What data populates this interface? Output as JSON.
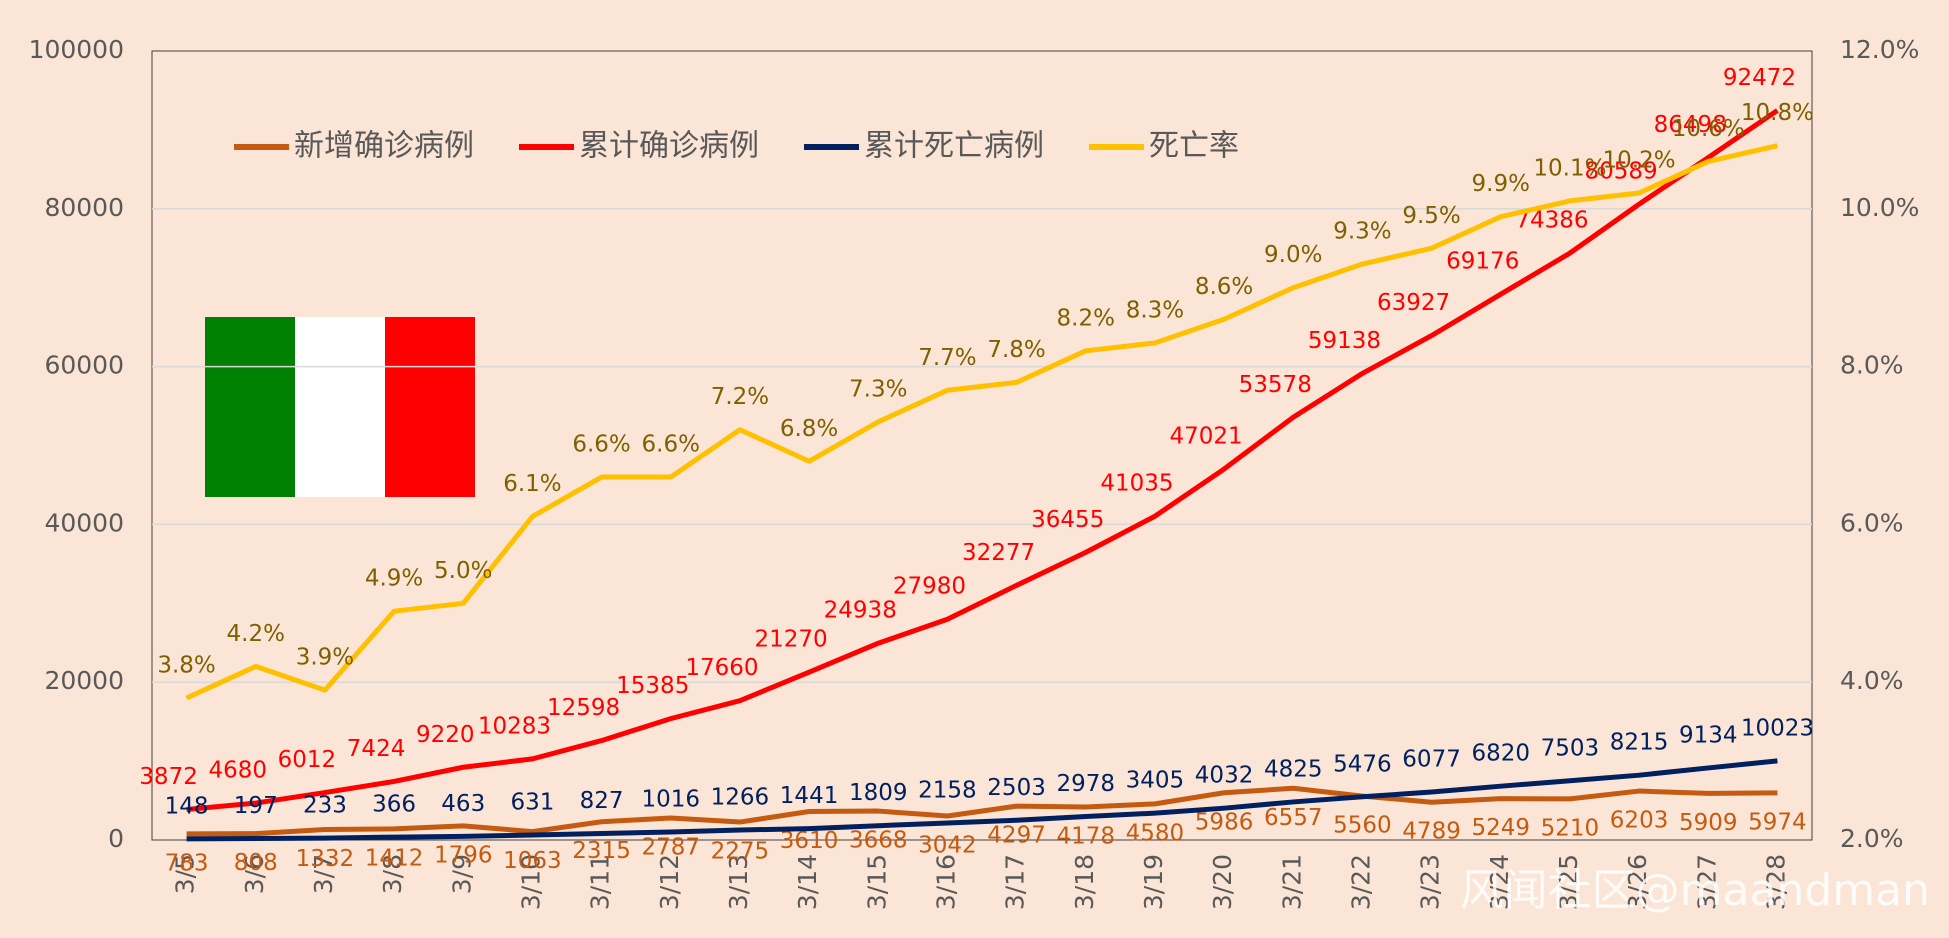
{
  "chart_data": {
    "type": "line",
    "categories": [
      "3/5",
      "3/6",
      "3/7",
      "3/8",
      "3/9",
      "3/10",
      "3/11",
      "3/12",
      "3/13",
      "3/14",
      "3/15",
      "3/16",
      "3/17",
      "3/18",
      "3/19",
      "3/20",
      "3/21",
      "3/22",
      "3/23",
      "3/24",
      "3/25",
      "3/26",
      "3/27",
      "3/28"
    ],
    "series": [
      {
        "name": "新增确诊病例",
        "color": "#c55a11",
        "values": [
          783,
          808,
          1332,
          1412,
          1796,
          1063,
          2315,
          2787,
          2275,
          3610,
          3668,
          3042,
          4297,
          4178,
          4580,
          5986,
          6557,
          5560,
          4789,
          5249,
          5210,
          6203,
          5909,
          5974
        ]
      },
      {
        "name": "累计确诊病例",
        "color": "#ff0000",
        "values": [
          3872,
          4680,
          6012,
          7424,
          9220,
          10283,
          12598,
          15385,
          17660,
          21270,
          24938,
          27980,
          32277,
          36455,
          41035,
          47021,
          53578,
          59138,
          63927,
          69176,
          74386,
          80589,
          86498,
          92472
        ]
      },
      {
        "name": "累计死亡病例",
        "color": "#002060",
        "values": [
          148,
          197,
          233,
          366,
          463,
          631,
          827,
          1016,
          1266,
          1441,
          1809,
          2158,
          2503,
          2978,
          3405,
          4032,
          4825,
          5476,
          6077,
          6820,
          7503,
          8215,
          9134,
          10023
        ]
      },
      {
        "name": "死亡率",
        "color": "#ffc000",
        "axis": "y2",
        "label_color": "#7f6000",
        "values": [
          3.8,
          4.2,
          3.9,
          4.9,
          5.0,
          6.1,
          6.6,
          6.6,
          7.2,
          6.8,
          7.3,
          7.7,
          7.8,
          8.2,
          8.3,
          8.6,
          9.0,
          9.3,
          9.5,
          9.9,
          10.1,
          10.2,
          10.6,
          10.8
        ],
        "value_labels": [
          "3.8%",
          "4.2%",
          "3.9%",
          "4.9%",
          "5.0%",
          "6.1%",
          "6.6%",
          "6.6%",
          "7.2%",
          "6.8%",
          "7.3%",
          "7.7%",
          "7.8%",
          "8.2%",
          "8.3%",
          "8.6%",
          "9.0%",
          "9.3%",
          "9.5%",
          "9.9%",
          "10.1%",
          "10.2%",
          "10.6%",
          "10.8%"
        ]
      }
    ],
    "ylim": [
      0,
      100000
    ],
    "yticks": [
      0,
      20000,
      40000,
      60000,
      80000,
      100000
    ],
    "y2lim": [
      2,
      12
    ],
    "y2ticks": [
      {
        "value": 2,
        "label": "2.0%"
      },
      {
        "value": 4,
        "label": "4.0%"
      },
      {
        "value": 6,
        "label": "6.0%"
      },
      {
        "value": 8,
        "label": "8.0%"
      },
      {
        "value": 10,
        "label": "10.0%"
      },
      {
        "value": 12,
        "label": "12.0%"
      }
    ],
    "grid": true,
    "watermark": "风闻社区@maandman"
  }
}
